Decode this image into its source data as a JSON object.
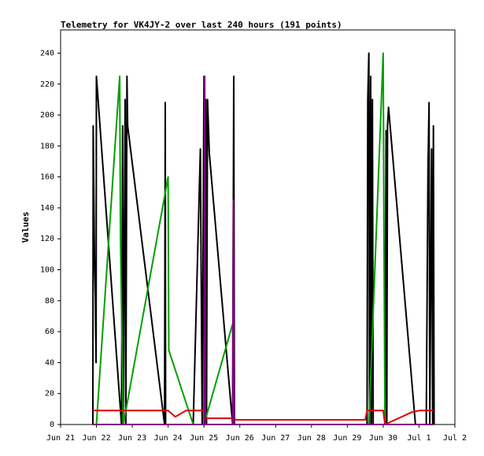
{
  "chart_data": {
    "type": "line",
    "title": "Telemetry for VK4JY-2 over last 240 hours (191 points)",
    "xlabel": "",
    "ylabel": "Values",
    "ylim": [
      0,
      255
    ],
    "xlim": [
      0,
      11
    ],
    "yticks": [
      0,
      20,
      40,
      60,
      80,
      100,
      120,
      140,
      160,
      180,
      200,
      220,
      240
    ],
    "xticks": [
      {
        "x": 0,
        "label": "Jun 21"
      },
      {
        "x": 1,
        "label": "Jun 22"
      },
      {
        "x": 2,
        "label": "Jun 23"
      },
      {
        "x": 3,
        "label": "Jun 24"
      },
      {
        "x": 4,
        "label": "Jun 25"
      },
      {
        "x": 5,
        "label": "Jun 26"
      },
      {
        "x": 6,
        "label": "Jun 27"
      },
      {
        "x": 7,
        "label": "Jun 28"
      },
      {
        "x": 8,
        "label": "Jun 29"
      },
      {
        "x": 9,
        "label": "Jun 30"
      },
      {
        "x": 10,
        "label": "Jul 1"
      },
      {
        "x": 11,
        "label": "Jul 2"
      }
    ],
    "series": [
      {
        "color": "#000000",
        "points": [
          [
            0.9,
            0
          ],
          [
            0.91,
            193
          ],
          [
            0.92,
            164
          ],
          [
            0.93,
            140
          ],
          [
            0.94,
            120
          ],
          [
            0.95,
            100
          ],
          [
            0.97,
            80
          ],
          [
            0.98,
            60
          ],
          [
            0.99,
            40
          ],
          [
            1.0,
            225
          ],
          [
            1.7,
            0
          ],
          [
            1.73,
            193
          ],
          [
            1.75,
            0
          ],
          [
            1.8,
            210
          ],
          [
            1.82,
            0
          ],
          [
            1.85,
            225
          ],
          [
            1.87,
            193
          ],
          [
            2.9,
            0
          ],
          [
            2.92,
            208
          ],
          [
            2.93,
            0
          ],
          [
            3.7,
            0
          ],
          [
            3.9,
            178
          ],
          [
            3.95,
            0
          ],
          [
            4.0,
            225
          ],
          [
            4.02,
            0
          ],
          [
            4.05,
            210
          ],
          [
            4.07,
            0
          ],
          [
            4.1,
            210
          ],
          [
            4.15,
            175
          ],
          [
            4.8,
            0
          ],
          [
            4.83,
            225
          ],
          [
            4.85,
            0
          ],
          [
            8.55,
            0
          ],
          [
            8.57,
            210
          ],
          [
            8.6,
            240
          ],
          [
            8.62,
            0
          ],
          [
            8.65,
            225
          ],
          [
            8.67,
            0
          ],
          [
            8.7,
            210
          ],
          [
            8.72,
            0
          ],
          [
            9.05,
            0
          ],
          [
            9.08,
            190
          ],
          [
            9.1,
            0
          ],
          [
            9.12,
            193
          ],
          [
            9.15,
            205
          ],
          [
            9.9,
            0
          ],
          [
            10.2,
            0
          ],
          [
            10.25,
            165
          ],
          [
            10.28,
            208
          ],
          [
            10.3,
            0
          ],
          [
            10.35,
            178
          ],
          [
            10.38,
            0
          ],
          [
            10.4,
            193
          ],
          [
            10.42,
            0
          ]
        ]
      },
      {
        "color": "#00a000",
        "points": [
          [
            1.0,
            0
          ],
          [
            1.65,
            225
          ],
          [
            1.67,
            120
          ],
          [
            1.75,
            0
          ],
          [
            3.0,
            160
          ],
          [
            3.02,
            48
          ],
          [
            3.7,
            0
          ],
          [
            4.0,
            0
          ],
          [
            4.8,
            65
          ],
          [
            4.83,
            0
          ],
          [
            8.6,
            0
          ],
          [
            9.0,
            240
          ],
          [
            9.02,
            130
          ],
          [
            9.05,
            0
          ]
        ]
      },
      {
        "color": "#e00000",
        "points": [
          [
            0.9,
            9
          ],
          [
            3.0,
            9
          ],
          [
            3.2,
            5
          ],
          [
            3.5,
            9
          ],
          [
            4.0,
            9
          ],
          [
            4.02,
            4
          ],
          [
            4.8,
            4
          ],
          [
            4.9,
            3
          ],
          [
            8.5,
            3
          ],
          [
            8.55,
            9
          ],
          [
            9.0,
            9
          ],
          [
            9.05,
            0
          ],
          [
            9.8,
            8
          ],
          [
            10.0,
            9
          ],
          [
            10.4,
            9
          ]
        ]
      },
      {
        "color": "#800080",
        "points": [
          [
            0.9,
            0
          ],
          [
            4.0,
            0
          ],
          [
            4.02,
            225
          ],
          [
            4.04,
            0
          ],
          [
            4.8,
            0
          ],
          [
            4.82,
            145
          ],
          [
            4.84,
            0
          ],
          [
            10.4,
            0
          ]
        ]
      }
    ]
  }
}
